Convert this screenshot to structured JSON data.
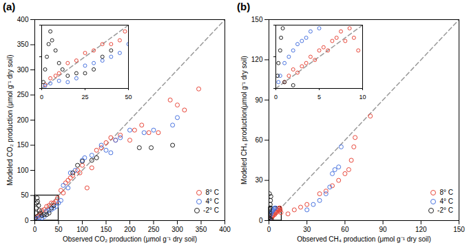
{
  "chart_data": [
    {
      "type": "scatter",
      "title": "(a)",
      "x_label": "Observed CO₂ production (μmol g⁻¹ dry soil)",
      "y_label": "Modeled CO₂ production (μmol g⁻¹ dry soil)",
      "xlim": [
        0,
        400
      ],
      "ylim": [
        0,
        400
      ],
      "xticks": [
        0,
        50,
        100,
        150,
        200,
        250,
        300,
        350,
        400
      ],
      "yticks": [
        0,
        50,
        100,
        150,
        200,
        250,
        300,
        350,
        400
      ],
      "grid": false,
      "legend": "bottom-right",
      "inset": {
        "xlim": [
          0,
          50
        ],
        "ylim": [
          0,
          50
        ],
        "xticks": [
          0,
          25,
          50
        ],
        "yticks": [
          0,
          25,
          50
        ],
        "tick_labels": "x"
      },
      "series": [
        {
          "name": "8° C",
          "color": "#e8473a",
          "marker": "open_circle",
          "x": [
            2,
            5,
            8,
            10,
            15,
            20,
            25,
            30,
            35,
            40,
            45,
            48,
            55,
            60,
            65,
            70,
            75,
            80,
            90,
            95,
            100,
            110,
            120,
            130,
            140,
            150,
            160,
            170,
            180,
            200,
            210,
            225,
            240,
            260,
            285,
            300,
            315,
            345
          ],
          "values": [
            3,
            8,
            10,
            12,
            20,
            22,
            28,
            30,
            35,
            35,
            38,
            45,
            60,
            55,
            75,
            80,
            85,
            90,
            100,
            95,
            110,
            65,
            105,
            140,
            145,
            155,
            165,
            160,
            170,
            160,
            180,
            190,
            175,
            175,
            240,
            230,
            220,
            262
          ]
        },
        {
          "name": "4° C",
          "color": "#4a74e0",
          "marker": "open_circle",
          "x": [
            2,
            5,
            10,
            15,
            20,
            25,
            30,
            35,
            40,
            45,
            50,
            55,
            60,
            70,
            75,
            85,
            100,
            105,
            120,
            140,
            150,
            160,
            170,
            180,
            200,
            230,
            250,
            290,
            300
          ],
          "values": [
            2,
            4,
            6,
            5,
            8,
            18,
            20,
            22,
            25,
            28,
            35,
            40,
            70,
            65,
            95,
            100,
            120,
            125,
            130,
            150,
            140,
            135,
            160,
            165,
            180,
            175,
            180,
            190,
            205
          ]
        },
        {
          "name": "-2° C",
          "color": "#222222",
          "marker": "open_circle",
          "x": [
            1,
            2,
            3,
            4,
            5,
            6,
            8,
            10,
            12,
            15,
            20,
            25,
            30,
            35,
            40,
            80,
            90,
            100,
            120,
            130,
            220,
            245,
            290
          ],
          "values": [
            5,
            15,
            25,
            35,
            45,
            38,
            30,
            20,
            15,
            10,
            12,
            12,
            15,
            25,
            30,
            95,
            110,
            118,
            120,
            125,
            145,
            145,
            150
          ]
        }
      ]
    },
    {
      "type": "scatter",
      "title": "(b)",
      "x_label": "Observed CH₄ production (μmol g⁻¹ dry soil)",
      "y_label": "Modeled CH₄ production(μmol g⁻¹ dry soil)",
      "xlim": [
        0,
        150
      ],
      "ylim": [
        0,
        150
      ],
      "xticks": [
        0,
        30,
        60,
        90,
        120,
        150
      ],
      "yticks": [
        0,
        30,
        60,
        90,
        120,
        150
      ],
      "grid": false,
      "legend": "bottom-right",
      "inset": {
        "xlim": [
          0,
          10
        ],
        "ylim": [
          0,
          10
        ],
        "xticks": [
          0,
          5,
          10
        ],
        "yticks": [
          0,
          5,
          10
        ],
        "tick_labels": "x"
      },
      "series": [
        {
          "name": "8° C",
          "color": "#e8473a",
          "marker": "open_circle",
          "x": [
            1,
            1.5,
            2,
            2.5,
            3,
            3.5,
            4,
            4.5,
            5,
            5.5,
            6,
            6.5,
            7,
            7.5,
            8,
            8.5,
            9,
            9.5,
            15,
            20,
            25,
            30,
            40,
            45,
            50,
            55,
            60,
            63,
            65,
            67,
            68,
            80
          ],
          "values": [
            1,
            2,
            3,
            2.5,
            3.5,
            4,
            5,
            4.5,
            6,
            6.5,
            6,
            7.5,
            8,
            9,
            7.5,
            9.5,
            8,
            6,
            5,
            8,
            10,
            12,
            20,
            22,
            26,
            30,
            35,
            38,
            45,
            55,
            62,
            78
          ]
        },
        {
          "name": "4° C",
          "color": "#4a74e0",
          "marker": "open_circle",
          "x": [
            0.3,
            0.5,
            1,
            1.5,
            2,
            2.5,
            3,
            3.5,
            4,
            5,
            30,
            35,
            40,
            45,
            48,
            50,
            52,
            55,
            57
          ],
          "values": [
            1,
            2,
            4,
            5,
            6,
            7,
            7.5,
            8,
            9,
            9.5,
            8,
            12,
            15,
            20,
            25,
            35,
            38,
            40,
            55
          ]
        },
        {
          "name": "-2° C",
          "color": "#222222",
          "marker": "open_circle",
          "x": [
            0.2,
            0.3,
            0.5,
            0.6,
            0.8,
            1,
            1.2,
            1.5,
            1,
            2,
            0.4
          ],
          "values": [
            2,
            4,
            6,
            8,
            9.5,
            12,
            15,
            18,
            1,
            0.5,
            20
          ]
        }
      ]
    }
  ]
}
